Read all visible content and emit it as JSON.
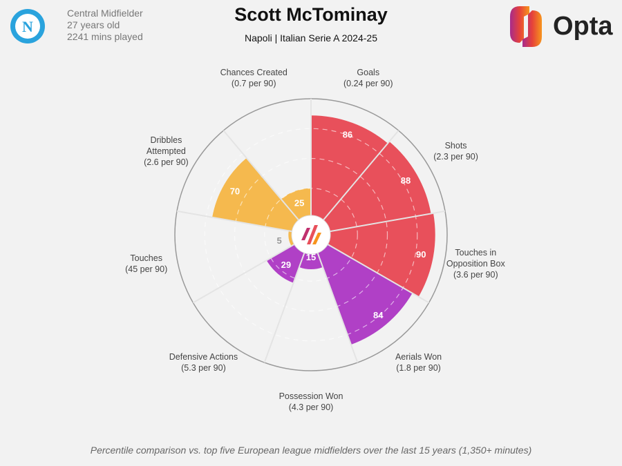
{
  "header": {
    "position": "Central Midfielder",
    "age": "27 years old",
    "minutes": "2241 mins played",
    "player": "Scott McTominay",
    "subtitle": "Napoli | Italian Serie A 2024-25",
    "brand": "Opta",
    "club_badge_letter": "N"
  },
  "footnote": "Percentile comparison vs. top five European league midfielders over the last 15 years (1,350+ minutes)",
  "colors": {
    "attack": "#e8505b",
    "defence": "#b040c6",
    "possession": "#f5b94e",
    "background": "#f2f2f2"
  },
  "chart_data": {
    "type": "polar-bar",
    "range": [
      0,
      100
    ],
    "categories": [
      {
        "name": "Goals",
        "rate": "(0.24 per 90)",
        "value": 86,
        "group": "attack"
      },
      {
        "name": "Shots",
        "rate": "(2.3 per 90)",
        "value": 88,
        "group": "attack"
      },
      {
        "name": "Touches in Opposition Box",
        "rate": "(3.6 per 90)",
        "value": 90,
        "group": "attack"
      },
      {
        "name": "Aerials Won",
        "rate": "(1.8 per 90)",
        "value": 84,
        "group": "defence"
      },
      {
        "name": "Possession Won",
        "rate": "(4.3 per 90)",
        "value": 15,
        "group": "defence"
      },
      {
        "name": "Defensive Actions",
        "rate": "(5.3 per 90)",
        "value": 29,
        "group": "defence"
      },
      {
        "name": "Touches",
        "rate": "(45 per 90)",
        "value": 5,
        "group": "possession"
      },
      {
        "name": "Dribbles Attempted",
        "rate": "(2.6 per 90)",
        "value": 70,
        "group": "possession"
      },
      {
        "name": "Chances Created",
        "rate": "(0.7 per 90)",
        "value": 25,
        "group": "possession"
      }
    ]
  }
}
